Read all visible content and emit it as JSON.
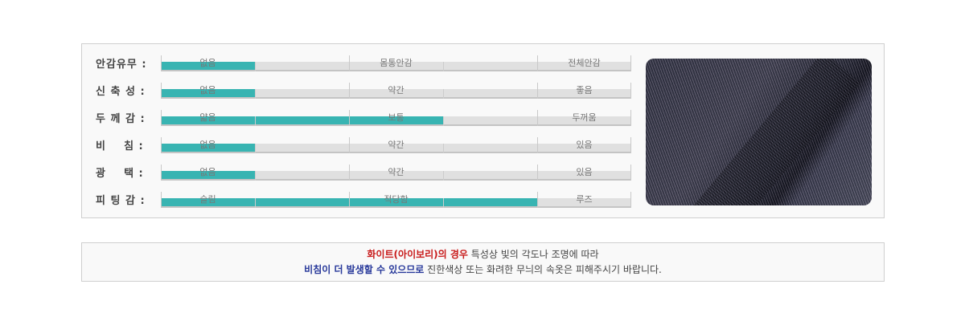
{
  "spec": {
    "rows": [
      {
        "label": "안감유무 :",
        "marks": [
          "없음",
          "몸통안감",
          "전체안감"
        ],
        "level": 0.2
      },
      {
        "label": "신 축 성 :",
        "marks": [
          "없음",
          "약간",
          "좋음"
        ],
        "level": 0.2
      },
      {
        "label": "두 께 감 :",
        "marks": [
          "얇음",
          "보통",
          "두꺼움"
        ],
        "level": 0.6
      },
      {
        "label": "비    침 :",
        "marks": [
          "없음",
          "약간",
          "있음"
        ],
        "level": 0.2
      },
      {
        "label": "광    택 :",
        "marks": [
          "없음",
          "약간",
          "있음"
        ],
        "level": 0.2
      },
      {
        "label": "피 팅 감 :",
        "marks": [
          "슬림",
          "적당함",
          "루즈"
        ],
        "level": 0.8
      }
    ],
    "fill_color": "#38b4b2",
    "track_color": "#e0e0e0"
  },
  "note": {
    "line1_highlight": "화이트(아이보리)의 경우",
    "line1_rest": " 특성상 빛의 각도나 조명에 따라",
    "line2_highlight": "비침이 더 발생할 수 있으므로",
    "line2_rest": " 진한색상 또는 화려한 무늬의 속옷은 피해주시기 바랍니다.",
    "red": "#c81a1a",
    "blue": "#27389a"
  }
}
